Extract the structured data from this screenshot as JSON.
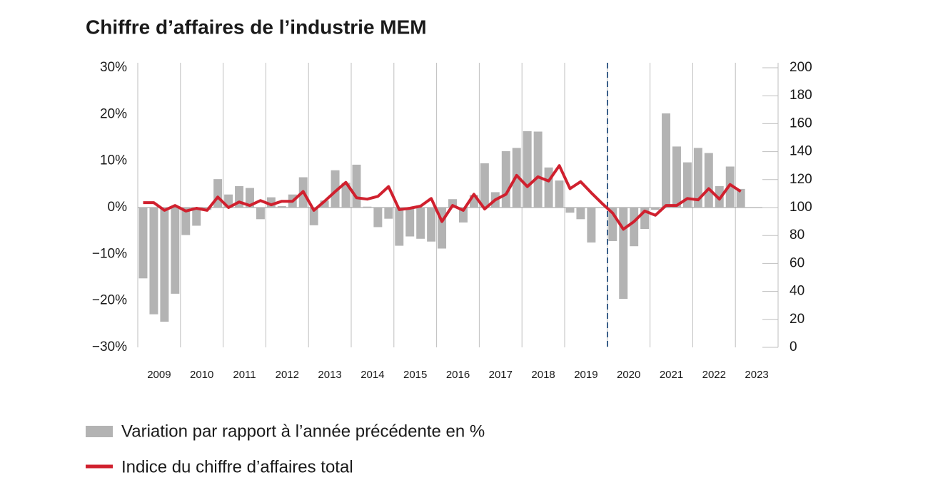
{
  "chart_data": {
    "type": "bar_line",
    "title": "Chiffre d’affaires de l’industrie MEM",
    "categories": [
      "2009",
      null,
      null,
      null,
      "2010",
      null,
      null,
      null,
      "2011",
      null,
      null,
      null,
      "2012",
      null,
      null,
      null,
      "2013",
      null,
      null,
      null,
      "2014",
      null,
      null,
      null,
      "2015",
      null,
      null,
      null,
      "2016",
      null,
      null,
      null,
      "2017",
      null,
      null,
      null,
      "2018",
      null,
      null,
      null,
      "2019",
      null,
      null,
      null,
      "2020",
      null,
      null,
      null,
      "2021",
      null,
      null,
      null,
      "2022",
      null,
      null,
      null,
      "2023",
      null,
      null,
      null
    ],
    "series": [
      {
        "name": "Variation par rapport à l’année précédente en %",
        "type": "bar",
        "color": "#b3b3b3",
        "values": [
          -15.2,
          -22.9,
          -24.5,
          -18.5,
          -5.9,
          -3.9,
          -0.5,
          6.1,
          2.8,
          4.6,
          4.2,
          -2.5,
          2.2,
          0.3,
          2.8,
          6.5,
          -3.8,
          1.5,
          8.0,
          5.3,
          9.2,
          0.2,
          -4.2,
          -2.4,
          -8.2,
          -6.2,
          -6.7,
          -7.3,
          -8.8,
          1.8,
          -3.2,
          2.7,
          9.5,
          3.3,
          12.1,
          12.8,
          16.4,
          16.3,
          8.6,
          5.8,
          -1.1,
          -2.5,
          -7.5,
          0,
          -7.2,
          -19.6,
          -8.3,
          -4.6,
          -0.5,
          20.2,
          13.1,
          9.7,
          12.8,
          11.7,
          4.6,
          8.8,
          4.0,
          null,
          null,
          null
        ]
      },
      {
        "name": "Indice du chiffre d’affaires total",
        "type": "line",
        "axis": "y2",
        "color": "#d0202e",
        "values": [
          103.5,
          103.5,
          98,
          101.5,
          97.5,
          99.5,
          98,
          107.5,
          100,
          104,
          101.5,
          105,
          102,
          104.5,
          104.5,
          111.5,
          98,
          104.5,
          111.5,
          118,
          107,
          106,
          108,
          115,
          98.5,
          99.5,
          101,
          106.5,
          90,
          101.5,
          98,
          109.5,
          99,
          105.5,
          109.5,
          123,
          115,
          122,
          119,
          130,
          113.5,
          118.5,
          110.5,
          103,
          96,
          84.5,
          90,
          97.5,
          94.5,
          101.5,
          101.5,
          106.5,
          105.5,
          113.5,
          106,
          116.5,
          111.5,
          null,
          null,
          null
        ]
      }
    ],
    "ylim": [
      -30,
      30
    ],
    "yticks": [
      {
        "value": -30,
        "label": "−30%"
      },
      {
        "value": -20,
        "label": "−20%"
      },
      {
        "value": -10,
        "label": "−10%"
      },
      {
        "value": 0,
        "label": "0%"
      },
      {
        "value": 10,
        "label": "10%"
      },
      {
        "value": 20,
        "label": "20%"
      },
      {
        "value": 30,
        "label": "30%"
      }
    ],
    "y2lim": [
      0,
      200
    ],
    "y2ticks": [
      0,
      20,
      40,
      60,
      80,
      100,
      120,
      140,
      160,
      180,
      200
    ]
  }
}
